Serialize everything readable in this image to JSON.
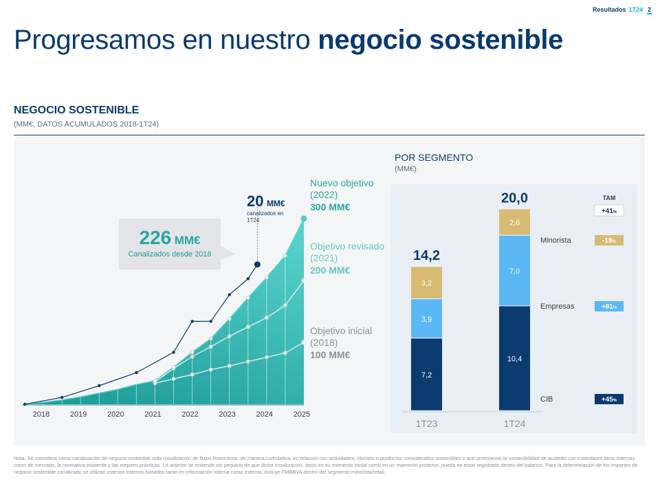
{
  "header": {
    "label": "Resultados",
    "period": "1T24",
    "page": "2"
  },
  "title": {
    "regular": "Progresamos en nuestro ",
    "bold": "negocio sostenible"
  },
  "section": {
    "title": "NEGOCIO SOSTENIBLE",
    "subtitle": "(MM€, DATOS ACUMULADOS 2018-1T24)"
  },
  "colors": {
    "navy": "#0b3a6e",
    "teal": "#2aa6a1",
    "teal_light": "#55d3cf",
    "blue_light": "#5bb8f5",
    "gold": "#d7bb72",
    "gray_line": "#d0d4d8"
  },
  "callout": {
    "value": "226",
    "unit": "MM€",
    "caption": "Canalizados desde 2018"
  },
  "marker": {
    "value": "20",
    "unit": "MM€",
    "caption_line1": "canalizados en",
    "caption_line2": "1T24"
  },
  "targets": [
    {
      "line1": "Nuevo objetivo",
      "line2": "(2022)",
      "value": "300",
      "unit": "MM€",
      "color": "#2aa6a1"
    },
    {
      "line1": "Objetivo revisado",
      "line2": "(2021)",
      "value": "200",
      "unit": "MM€",
      "color": "#63c8c5"
    },
    {
      "line1": "Objetivo inicial",
      "line2": "(2018)",
      "value": "100",
      "unit": "MM€",
      "color": "#8a8f98"
    }
  ],
  "chart_data": [
    {
      "type": "area",
      "xlabel": "",
      "ylabel": "",
      "x_ticks": [
        "2018",
        "2019",
        "2020",
        "2021",
        "2022",
        "2023",
        "2024",
        "2025"
      ],
      "x_range": [
        2018,
        2025.5
      ],
      "y_range": [
        0,
        300
      ],
      "series": [
        {
          "name": "Nuevo objetivo (2022)",
          "x": [
            2018,
            2018.5,
            2019,
            2019.5,
            2020,
            2020.5,
            2021,
            2021.5,
            2022,
            2022.5,
            2023,
            2023.5,
            2024,
            2024.5,
            2025,
            2025.5
          ],
          "y": [
            0,
            3,
            7,
            12,
            18,
            24,
            32,
            38,
            60,
            84,
            106,
            138,
            172,
            205,
            240,
            300
          ]
        },
        {
          "name": "Objetivo revisado (2021)",
          "x": [
            2021.5,
            2022,
            2022.5,
            2023,
            2023.5,
            2024,
            2024.5,
            2025,
            2025.5
          ],
          "y": [
            36,
            58,
            77,
            93,
            110,
            125,
            140,
            160,
            200
          ]
        },
        {
          "name": "Objetivo inicial (2018)",
          "x": [
            2021.5,
            2022,
            2022.5,
            2023,
            2023.5,
            2024,
            2024.5,
            2025,
            2025.5
          ],
          "y": [
            34,
            41,
            48,
            56,
            62,
            69,
            76,
            83,
            100
          ]
        },
        {
          "name": "Real",
          "x": [
            2018,
            2019,
            2020,
            2021,
            2022,
            2022.5,
            2023,
            2023.5,
            2024,
            2024.25
          ],
          "y": [
            0,
            11,
            30,
            51,
            84,
            134,
            134,
            177,
            203,
            226
          ]
        }
      ]
    },
    {
      "type": "bar",
      "title": "POR SEGMENTO",
      "subtitle": "(MM€)",
      "categories": [
        "1T23",
        "1T24"
      ],
      "totals": [
        "14,2",
        "20,0"
      ],
      "stacked": true,
      "series": [
        {
          "name": "CIB",
          "values": [
            7.2,
            10.4
          ],
          "labels": [
            "7,2",
            "10,4"
          ],
          "color": "#0b3a6e",
          "tam": "+45",
          "tam_color": "#0b3a6e"
        },
        {
          "name": "Empresas",
          "values": [
            3.9,
            7.0
          ],
          "labels": [
            "3,9",
            "7,0"
          ],
          "color": "#5bb8f5",
          "tam": "+81",
          "tam_color": "#5bb8f5"
        },
        {
          "name": "Minorista",
          "values": [
            3.2,
            2.6
          ],
          "labels": [
            "3,2",
            "2,6"
          ],
          "color": "#d7bb72",
          "tam": "-19",
          "tam_color": "#d7bb72"
        }
      ],
      "tam": {
        "header": "TAM",
        "total": "+41",
        "suffix": "%"
      }
    }
  ],
  "footnote": "Nota: Se considera como canalización de negocio sostenible toda movilización de flujos financieros, de manera cumulativa, en relación con actividades, clientes o productos considerados sostenibles o que promuevan la sostenibilidad de acuerdo con estándares tanto internos como de mercado, la normativa existente y las mejores prácticas. Lo anterior se entiende sin perjuicio de que dicha movilización, tanto en su momento inicial como en un momento posterior, pueda no estar registrada dentro del balance. Para la determinación de los importes de negocio sostenible canalizado se utilizan criterios internos basados tanto en información interna como externa. Incluye FMBBVA dentro del segmento minorista/retail."
}
